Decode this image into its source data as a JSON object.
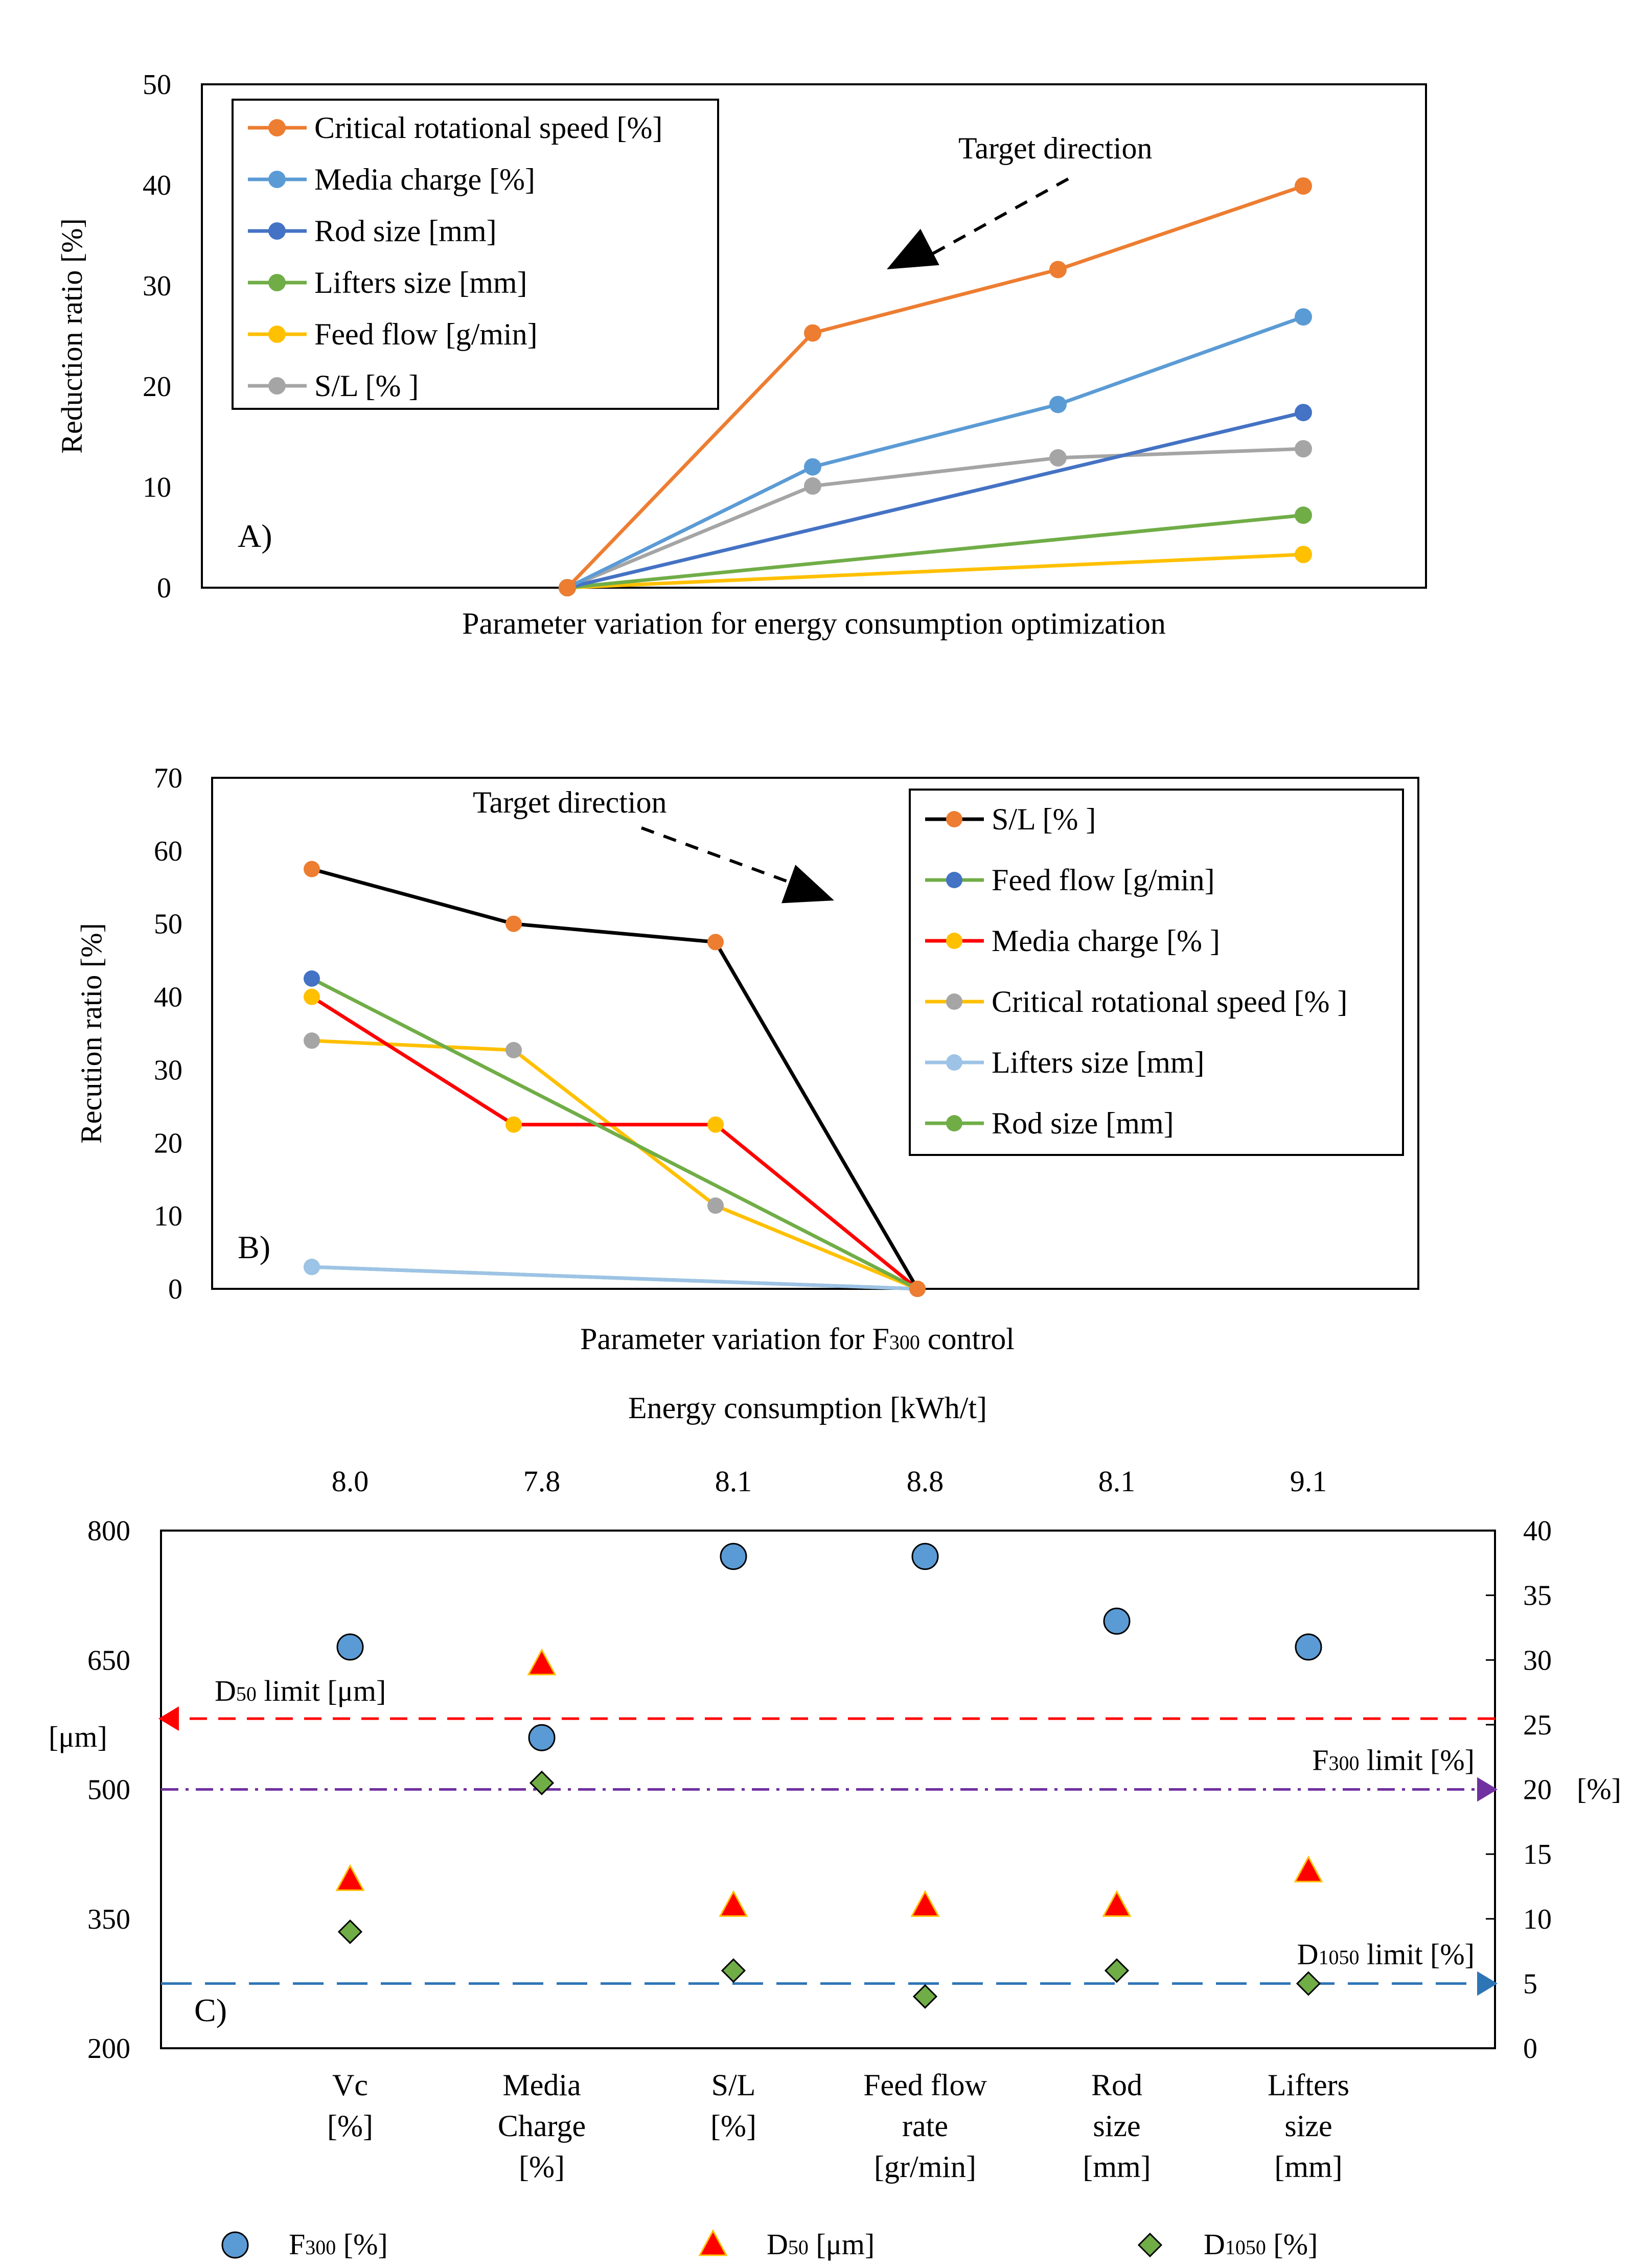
{
  "figure": [
    {
      "panel": "A",
      "chart_data": {
        "type": "line",
        "panel_label": "A)",
        "xlabel": "Parameter variation for energy consumption optimization",
        "ylabel": "Reduction ratio [%]",
        "ylim": [
          0,
          50
        ],
        "yticks": [
          0,
          10,
          20,
          30,
          40,
          50
        ],
        "x": [
          1,
          2,
          3,
          4
        ],
        "annotation": "Target direction",
        "legend_position": "top-left",
        "series": [
          {
            "name": "Critical rotational speed [%]",
            "color": "#ED7D31",
            "points": [
              [
                1,
                0
              ],
              [
                2,
                25.3
              ],
              [
                3,
                31.6
              ],
              [
                4,
                39.9
              ]
            ]
          },
          {
            "name": " Media charge [%]",
            "color": "#5B9BD5",
            "points": [
              [
                1,
                0
              ],
              [
                2,
                12.0
              ],
              [
                3,
                18.2
              ],
              [
                4,
                26.9
              ]
            ]
          },
          {
            "name": "Rod size [mm]",
            "color": "#4472C4",
            "points": [
              [
                1,
                0
              ],
              [
                4,
                17.4
              ]
            ]
          },
          {
            "name": "Lifters size [mm]",
            "color": "#70AD47",
            "points": [
              [
                1,
                0
              ],
              [
                4,
                7.2
              ]
            ]
          },
          {
            "name": "Feed flow [g/min]",
            "color": "#FFC000",
            "points": [
              [
                1,
                0
              ],
              [
                4,
                3.3
              ]
            ]
          },
          {
            "name": "S/L [% ]",
            "color": "#A5A5A5",
            "points": [
              [
                1,
                0
              ],
              [
                2,
                10.1
              ],
              [
                3,
                12.9
              ],
              [
                4,
                13.8
              ]
            ]
          }
        ]
      }
    },
    {
      "panel": "B",
      "chart_data": {
        "type": "line",
        "panel_label": "B)",
        "xlabel_main": "Parameter variation for F",
        "xlabel_sub": "300",
        "xlabel_tail": " control",
        "ylabel": "Recution ratio [%]",
        "ylim": [
          0,
          70
        ],
        "yticks": [
          0,
          10,
          20,
          30,
          40,
          50,
          60,
          70
        ],
        "x": [
          1,
          2,
          3,
          4
        ],
        "annotation": "Target direction",
        "legend_position": "top-right",
        "series": [
          {
            "name": "S/L [% ]",
            "color": "#000000",
            "marker": "#ED7D31",
            "points": [
              [
                1,
                57.5
              ],
              [
                2,
                50.0
              ],
              [
                3,
                47.5
              ],
              [
                4,
                0
              ]
            ]
          },
          {
            "name": "Feed flow [g/min]",
            "color": "#70AD47",
            "marker": "#4472C4",
            "points": [
              [
                1,
                42.5
              ],
              [
                4,
                0
              ]
            ]
          },
          {
            "name": "Media charge [% ]",
            "color": "#FF0000",
            "marker": "#FFC000",
            "points": [
              [
                1,
                40.0
              ],
              [
                2,
                22.5
              ],
              [
                3,
                22.5
              ],
              [
                4,
                0
              ]
            ]
          },
          {
            "name": "Critical rotational speed [% ]",
            "color": "#FFC000",
            "marker": "#A5A5A5",
            "points": [
              [
                1,
                34.0
              ],
              [
                2,
                32.7
              ],
              [
                3,
                11.4
              ],
              [
                4,
                0
              ]
            ]
          },
          {
            "name": "Lifters size [mm]",
            "color": "#9DC3E6",
            "marker": "#9DC3E6",
            "points": [
              [
                1,
                3.0
              ],
              [
                4,
                0
              ]
            ]
          },
          {
            "name": "Rod size [mm]",
            "color": "#70AD47",
            "marker": "#70AD47",
            "points": [
              [
                1,
                3.0
              ],
              [
                4,
                0
              ]
            ]
          }
        ]
      }
    },
    {
      "panel": "C",
      "chart_data": {
        "type": "scatter",
        "panel_label": "C)",
        "top_axis_title": "Energy consumption [kWh/t]",
        "left_axis_label": "[μm]",
        "right_axis_label": "[%]",
        "ylim_left": [
          200,
          800
        ],
        "yticks_left": [
          200,
          350,
          500,
          650,
          800
        ],
        "ylim_right": [
          0,
          40
        ],
        "yticks_right": [
          0,
          5,
          10,
          15,
          20,
          25,
          30,
          35,
          40
        ],
        "categories": [
          [
            "Vc",
            "[%]"
          ],
          [
            "Media",
            "Charge",
            "[%]"
          ],
          [
            "S/L",
            "[%]"
          ],
          [
            "Feed flow",
            "rate",
            "[gr/min]"
          ],
          [
            "Rod",
            "size",
            "[mm]"
          ],
          [
            "Lifters",
            "size",
            "[mm]"
          ]
        ],
        "energy_consumption": [
          "8.0",
          "7.8",
          "8.1",
          "8.8",
          "8.1",
          "9.1"
        ],
        "series": [
          {
            "name": "F",
            "name_sub": "300",
            "name_tail": " [%]",
            "axis": "right",
            "marker": "circle",
            "color": "#5B9BD5",
            "values": [
              31,
              24,
              38,
              38,
              33,
              31
            ]
          },
          {
            "name": "D",
            "name_sub": "50",
            "name_tail": " [μm]",
            "axis": "left",
            "marker": "triangle",
            "color": "#FF0000",
            "values": [
              395,
              645,
              365,
              365,
              365,
              405
            ]
          },
          {
            "name": "D",
            "name_sub": "1050",
            "name_tail": " [%]",
            "axis": "right",
            "marker": "diamond",
            "color": "#70AD47",
            "values": [
              9,
              20.5,
              6,
              4,
              6,
              5
            ]
          }
        ],
        "limits": [
          {
            "label_main": "D",
            "label_sub": "50",
            "label_tail": " limit [μm]",
            "axis": "left",
            "value": 582,
            "color": "#FF0000",
            "style": "dashed",
            "side": "left"
          },
          {
            "label_main": "F",
            "label_sub": "300",
            "label_tail": " limit [%]",
            "axis": "right",
            "value": 20,
            "color": "#7030A0",
            "style": "dashdot",
            "side": "right"
          },
          {
            "label_main": "D",
            "label_sub": "1050",
            "label_tail": " limit [%]",
            "axis": "right",
            "value": 5,
            "color": "#2E75B6",
            "style": "longdash",
            "side": "right"
          }
        ]
      }
    }
  ]
}
